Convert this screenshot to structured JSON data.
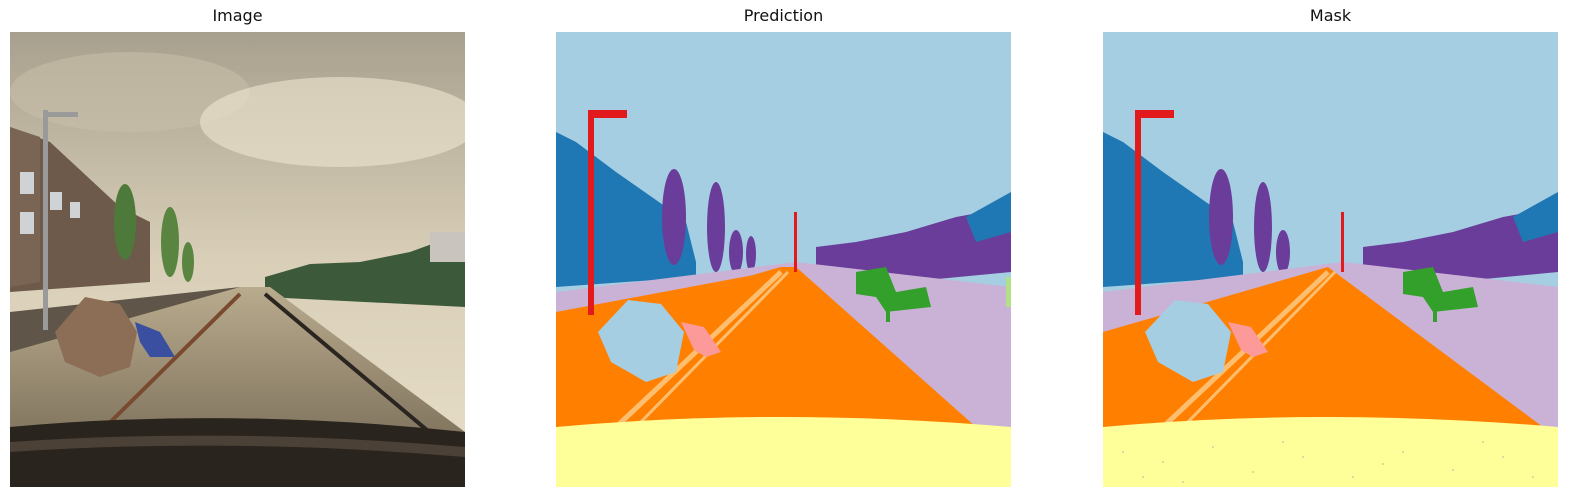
{
  "panels": [
    {
      "title": "Image"
    },
    {
      "title": "Prediction"
    },
    {
      "title": "Mask"
    }
  ],
  "colors": {
    "sky": "#a6cee3",
    "building": "#1f78b4",
    "pole": "#e31a1c",
    "vegetation": "#6a3d9a",
    "sidewalk": "#cab2d6",
    "road": "#ff7f00",
    "road_line": "#fdbf6f",
    "car_hood": "#ffff99",
    "fence": "#33a02c",
    "pedestrian": "#fb9a99",
    "misc": "#b2df8a"
  }
}
